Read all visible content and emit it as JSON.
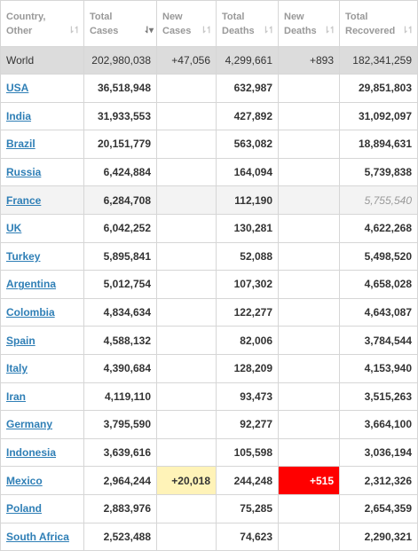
{
  "headers": [
    {
      "label": "Country,\nOther",
      "sort_icon": "sort-icon",
      "active": false
    },
    {
      "label": "Total\nCases",
      "sort_icon": "sort-desc-icon",
      "active": true
    },
    {
      "label": "New\nCases",
      "sort_icon": "sort-icon",
      "active": false
    },
    {
      "label": "Total\nDeaths",
      "sort_icon": "sort-icon",
      "active": false
    },
    {
      "label": "New\nDeaths",
      "sort_icon": "sort-icon",
      "active": false
    },
    {
      "label": "Total\nRecovered",
      "sort_icon": "sort-icon",
      "active": false
    }
  ],
  "world": {
    "country": "World",
    "total_cases": "202,980,038",
    "new_cases": "+47,056",
    "total_deaths": "4,299,661",
    "new_deaths": "+893",
    "total_recovered": "182,341,259"
  },
  "rows": [
    {
      "country": "USA",
      "total_cases": "36,518,948",
      "new_cases": "",
      "total_deaths": "632,987",
      "new_deaths": "",
      "total_recovered": "29,851,803"
    },
    {
      "country": "India",
      "total_cases": "31,933,553",
      "new_cases": "",
      "total_deaths": "427,892",
      "new_deaths": "",
      "total_recovered": "31,092,097"
    },
    {
      "country": "Brazil",
      "total_cases": "20,151,779",
      "new_cases": "",
      "total_deaths": "563,082",
      "new_deaths": "",
      "total_recovered": "18,894,631"
    },
    {
      "country": "Russia",
      "total_cases": "6,424,884",
      "new_cases": "",
      "total_deaths": "164,094",
      "new_deaths": "",
      "total_recovered": "5,739,838"
    },
    {
      "country": "France",
      "total_cases": "6,284,708",
      "new_cases": "",
      "total_deaths": "112,190",
      "new_deaths": "",
      "total_recovered": "5,755,540",
      "shaded": true,
      "recovered_italic": true
    },
    {
      "country": "UK",
      "total_cases": "6,042,252",
      "new_cases": "",
      "total_deaths": "130,281",
      "new_deaths": "",
      "total_recovered": "4,622,268"
    },
    {
      "country": "Turkey",
      "total_cases": "5,895,841",
      "new_cases": "",
      "total_deaths": "52,088",
      "new_deaths": "",
      "total_recovered": "5,498,520"
    },
    {
      "country": "Argentina",
      "total_cases": "5,012,754",
      "new_cases": "",
      "total_deaths": "107,302",
      "new_deaths": "",
      "total_recovered": "4,658,028"
    },
    {
      "country": "Colombia",
      "total_cases": "4,834,634",
      "new_cases": "",
      "total_deaths": "122,277",
      "new_deaths": "",
      "total_recovered": "4,643,087"
    },
    {
      "country": "Spain",
      "total_cases": "4,588,132",
      "new_cases": "",
      "total_deaths": "82,006",
      "new_deaths": "",
      "total_recovered": "3,784,544"
    },
    {
      "country": "Italy",
      "total_cases": "4,390,684",
      "new_cases": "",
      "total_deaths": "128,209",
      "new_deaths": "",
      "total_recovered": "4,153,940"
    },
    {
      "country": "Iran",
      "total_cases": "4,119,110",
      "new_cases": "",
      "total_deaths": "93,473",
      "new_deaths": "",
      "total_recovered": "3,515,263"
    },
    {
      "country": "Germany",
      "total_cases": "3,795,590",
      "new_cases": "",
      "total_deaths": "92,277",
      "new_deaths": "",
      "total_recovered": "3,664,100"
    },
    {
      "country": "Indonesia",
      "total_cases": "3,639,616",
      "new_cases": "",
      "total_deaths": "105,598",
      "new_deaths": "",
      "total_recovered": "3,036,194"
    },
    {
      "country": "Mexico",
      "total_cases": "2,964,244",
      "new_cases": "+20,018",
      "total_deaths": "244,248",
      "new_deaths": "+515",
      "total_recovered": "2,312,326",
      "new_cases_highlight": "#fff3b8",
      "new_deaths_highlight": "#ff0000"
    },
    {
      "country": "Poland",
      "total_cases": "2,883,976",
      "new_cases": "",
      "total_deaths": "75,285",
      "new_deaths": "",
      "total_recovered": "2,654,359"
    },
    {
      "country": "South Africa",
      "total_cases": "2,523,488",
      "new_cases": "",
      "total_deaths": "74,623",
      "new_deaths": "",
      "total_recovered": "2,290,321"
    }
  ],
  "colors": {
    "link": "#2f7fb6",
    "world_row_bg": "#dcdcdc",
    "header_text": "#999999"
  }
}
